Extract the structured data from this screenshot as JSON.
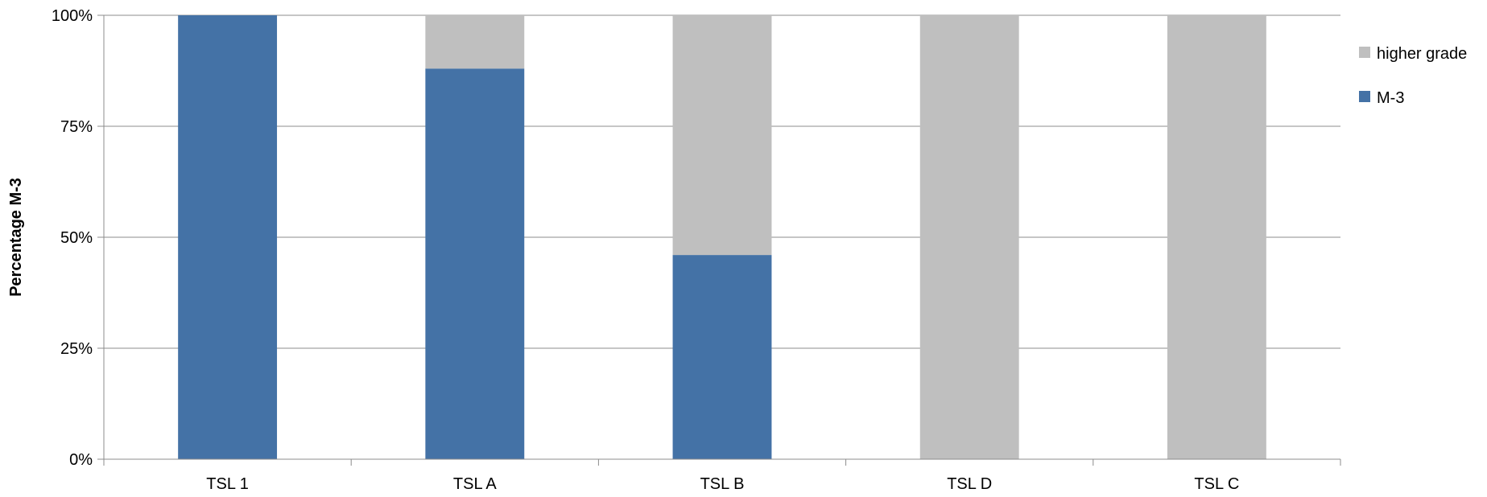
{
  "chart_data": {
    "type": "bar",
    "stacked": true,
    "percent_stacked": true,
    "categories": [
      "TSL 1",
      "TSL A",
      "TSL B",
      "TSL D",
      "TSL C"
    ],
    "series": [
      {
        "name": "M-3",
        "color": "#4472A6",
        "values": [
          100,
          88,
          46,
          0,
          0
        ]
      },
      {
        "name": "higher grade",
        "color": "#BFBFBF",
        "values": [
          0,
          12,
          54,
          100,
          100
        ]
      }
    ],
    "xlabel": "",
    "ylabel": "Percentage M-3",
    "ylim": [
      0,
      100
    ],
    "yticks": [
      "0%",
      "25%",
      "50%",
      "75%",
      "100%"
    ],
    "grid": true,
    "legend_position": "right",
    "legend_order": [
      "higher grade",
      "M-3"
    ]
  }
}
